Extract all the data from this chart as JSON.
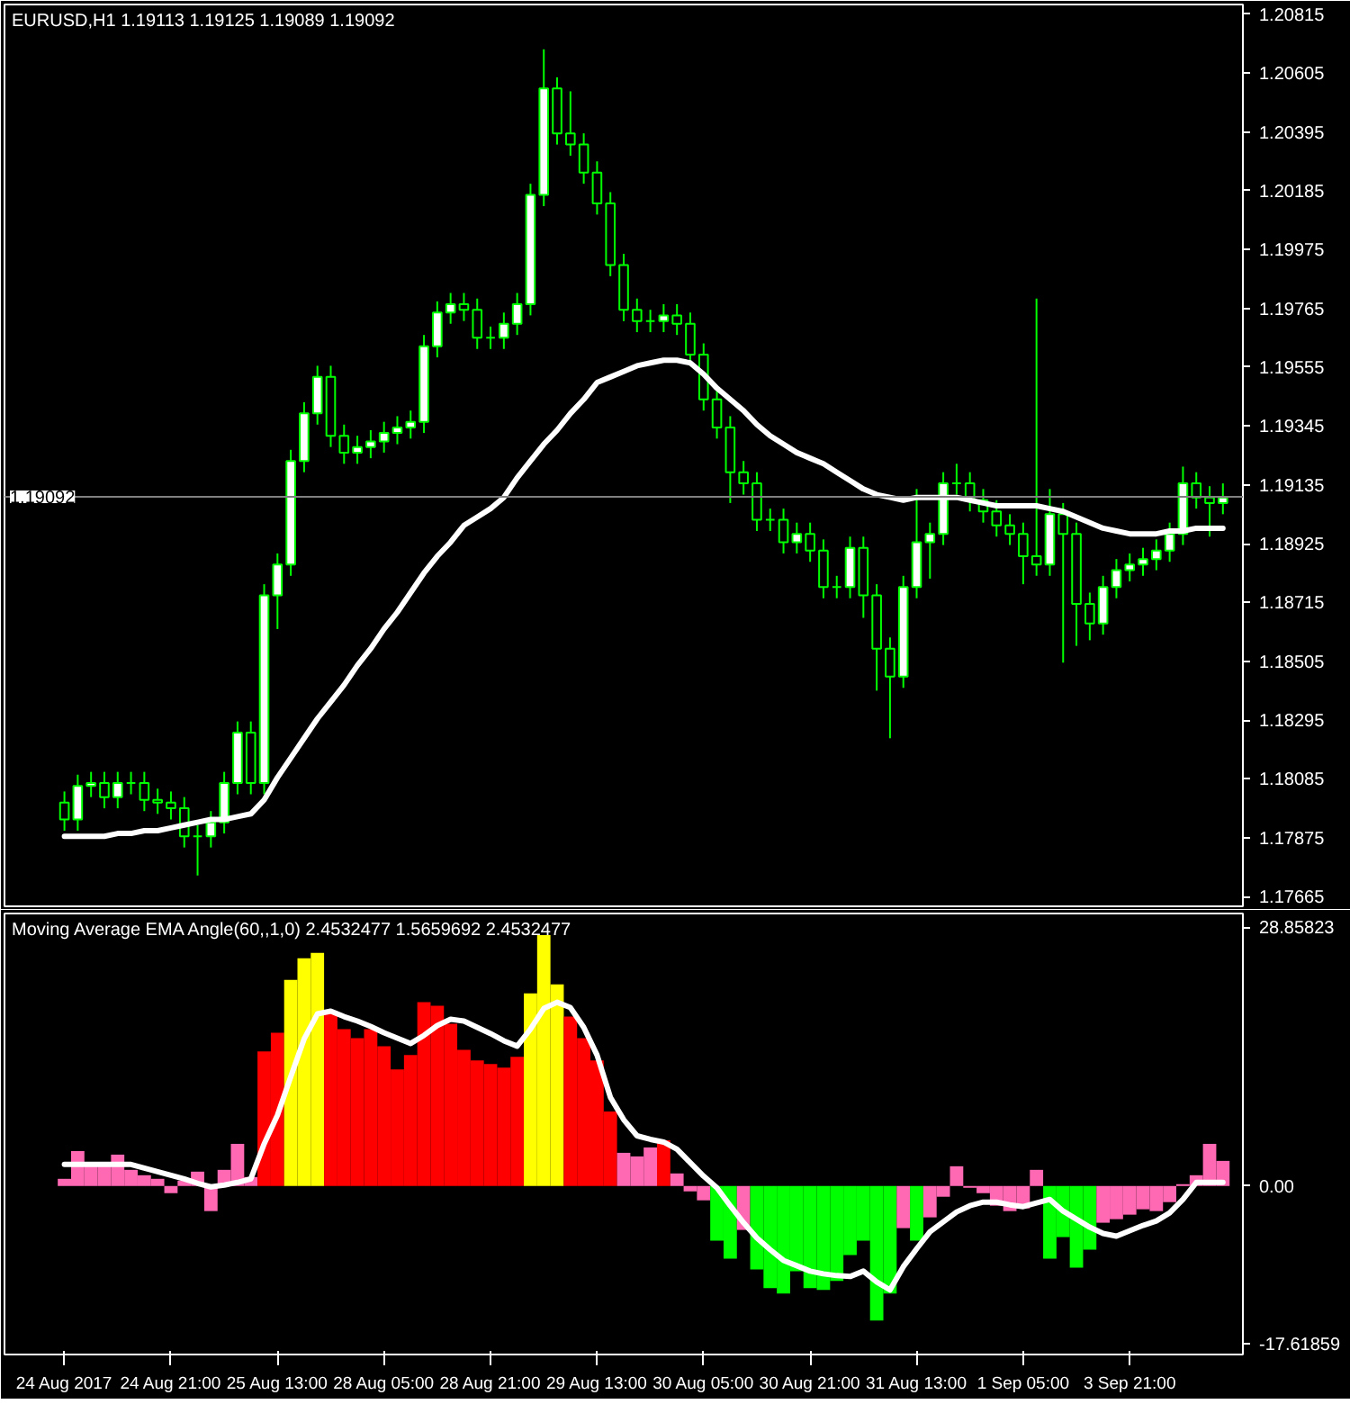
{
  "chart_data": [
    {
      "type": "candlestick",
      "title": "EURUSD,H1  1.19113 1.19125 1.19089 1.19092",
      "color": "#00ff00",
      "grid": false,
      "tick_labels": "y",
      "categories": [
        null,
        null,
        null,
        null,
        null,
        null,
        null,
        null,
        null,
        null,
        null,
        null,
        null,
        null,
        null,
        null,
        null,
        null,
        null,
        null,
        null,
        null,
        null,
        null,
        null,
        null,
        null,
        null,
        null,
        null,
        null,
        null,
        null,
        null,
        null,
        null,
        null,
        null,
        null,
        null,
        null,
        null,
        null,
        null,
        null,
        null,
        null,
        null,
        null,
        null,
        null,
        null,
        null,
        null,
        null,
        null,
        null,
        null,
        null,
        null,
        null,
        null,
        null,
        null,
        null,
        null,
        null,
        null,
        null,
        null,
        null,
        null,
        null,
        null,
        null,
        null,
        null,
        null,
        null,
        null,
        null,
        null,
        null,
        null,
        null,
        null,
        null,
        null
      ],
      "ohlc": [
        [
          1.18,
          1.1804,
          1.179,
          1.1794
        ],
        [
          1.1794,
          1.181,
          1.179,
          1.1806
        ],
        [
          1.1806,
          1.1811,
          1.1802,
          1.1807
        ],
        [
          1.1807,
          1.1811,
          1.1798,
          1.1802
        ],
        [
          1.1802,
          1.1811,
          1.1798,
          1.1807
        ],
        [
          1.1807,
          1.1811,
          1.1803,
          1.1807
        ],
        [
          1.1807,
          1.1811,
          1.1797,
          1.1801
        ],
        [
          1.1801,
          1.1805,
          1.1796,
          1.18
        ],
        [
          1.18,
          1.1804,
          1.1794,
          1.1798
        ],
        [
          1.1798,
          1.1802,
          1.1784,
          1.1788
        ],
        [
          1.1788,
          1.1792,
          1.1774,
          1.1788
        ],
        [
          1.1788,
          1.1797,
          1.1784,
          1.1793
        ],
        [
          1.1793,
          1.1811,
          1.1789,
          1.1807
        ],
        [
          1.1807,
          1.1829,
          1.1803,
          1.1825
        ],
        [
          1.1825,
          1.1829,
          1.1803,
          1.1807
        ],
        [
          1.1807,
          1.1878,
          1.1803,
          1.1874
        ],
        [
          1.1874,
          1.1889,
          1.1862,
          1.1885
        ],
        [
          1.1885,
          1.1926,
          1.1881,
          1.1922
        ],
        [
          1.1922,
          1.1943,
          1.1918,
          1.1939
        ],
        [
          1.1939,
          1.1956,
          1.1935,
          1.1952
        ],
        [
          1.1952,
          1.1956,
          1.1927,
          1.1931
        ],
        [
          1.1931,
          1.1935,
          1.1921,
          1.1925
        ],
        [
          1.1925,
          1.1931,
          1.1921,
          1.1927
        ],
        [
          1.1927,
          1.1933,
          1.1923,
          1.1929
        ],
        [
          1.1929,
          1.1936,
          1.1925,
          1.1932
        ],
        [
          1.1932,
          1.1938,
          1.1928,
          1.1934
        ],
        [
          1.1934,
          1.194,
          1.193,
          1.1936
        ],
        [
          1.1936,
          1.1967,
          1.1932,
          1.1963
        ],
        [
          1.1963,
          1.1979,
          1.1959,
          1.1975
        ],
        [
          1.1975,
          1.1982,
          1.1971,
          1.1978
        ],
        [
          1.1978,
          1.1982,
          1.1972,
          1.1976
        ],
        [
          1.1976,
          1.198,
          1.1962,
          1.1966
        ],
        [
          1.1966,
          1.197,
          1.1962,
          1.1966
        ],
        [
          1.1966,
          1.1975,
          1.1962,
          1.1971
        ],
        [
          1.1971,
          1.1982,
          1.1967,
          1.1978
        ],
        [
          1.1978,
          1.2021,
          1.1974,
          1.2017
        ],
        [
          1.2017,
          1.2069,
          1.2013,
          1.2055
        ],
        [
          1.2055,
          1.2059,
          1.2035,
          1.2039
        ],
        [
          1.2039,
          1.2054,
          1.2031,
          1.2035
        ],
        [
          1.2035,
          1.2039,
          1.2021,
          1.2025
        ],
        [
          1.2025,
          1.2029,
          1.201,
          1.2014
        ],
        [
          1.2014,
          1.2018,
          1.1988,
          1.1992
        ],
        [
          1.1992,
          1.1996,
          1.1972,
          1.1976
        ],
        [
          1.1976,
          1.198,
          1.1968,
          1.1972
        ],
        [
          1.1972,
          1.1976,
          1.1968,
          1.1972
        ],
        [
          1.1972,
          1.1978,
          1.1968,
          1.1974
        ],
        [
          1.1974,
          1.1978,
          1.1967,
          1.1971
        ],
        [
          1.1971,
          1.1975,
          1.1956,
          1.196
        ],
        [
          1.196,
          1.1964,
          1.194,
          1.1944
        ],
        [
          1.1944,
          1.1948,
          1.193,
          1.1934
        ],
        [
          1.1934,
          1.1938,
          1.1907,
          1.1918
        ],
        [
          1.1918,
          1.1922,
          1.191,
          1.1914
        ],
        [
          1.1914,
          1.1918,
          1.1897,
          1.1901
        ],
        [
          1.1901,
          1.1905,
          1.1897,
          1.1901
        ],
        [
          1.1901,
          1.1905,
          1.1889,
          1.1893
        ],
        [
          1.1893,
          1.19,
          1.1889,
          1.1896
        ],
        [
          1.1896,
          1.19,
          1.1886,
          1.189
        ],
        [
          1.189,
          1.1894,
          1.1873,
          1.1877
        ],
        [
          1.1877,
          1.1881,
          1.1873,
          1.1877
        ],
        [
          1.1877,
          1.1895,
          1.1873,
          1.1891
        ],
        [
          1.1891,
          1.1895,
          1.1866,
          1.1874
        ],
        [
          1.1874,
          1.1878,
          1.184,
          1.1855
        ],
        [
          1.1855,
          1.1859,
          1.1823,
          1.1845
        ],
        [
          1.1845,
          1.1881,
          1.1841,
          1.1877
        ],
        [
          1.1877,
          1.1912,
          1.1873,
          1.1893
        ],
        [
          1.1893,
          1.19,
          1.188,
          1.1896
        ],
        [
          1.1896,
          1.1918,
          1.1892,
          1.1914
        ],
        [
          1.1914,
          1.1921,
          1.191,
          1.1914
        ],
        [
          1.1914,
          1.1918,
          1.1904,
          1.1908
        ],
        [
          1.1908,
          1.1912,
          1.19,
          1.1904
        ],
        [
          1.1904,
          1.1908,
          1.1895,
          1.1899
        ],
        [
          1.1899,
          1.1903,
          1.1892,
          1.1896
        ],
        [
          1.1896,
          1.19,
          1.1878,
          1.1888
        ],
        [
          1.1888,
          1.198,
          1.1881,
          1.1885
        ],
        [
          1.1885,
          1.1912,
          1.1881,
          1.1903
        ],
        [
          1.1903,
          1.1907,
          1.185,
          1.1896
        ],
        [
          1.1896,
          1.19,
          1.1856,
          1.1871
        ],
        [
          1.1871,
          1.1875,
          1.1858,
          1.1864
        ],
        [
          1.1864,
          1.1881,
          1.186,
          1.1877
        ],
        [
          1.1877,
          1.1887,
          1.1873,
          1.1883
        ],
        [
          1.1883,
          1.1889,
          1.1879,
          1.1885
        ],
        [
          1.1885,
          1.1891,
          1.1881,
          1.1887
        ],
        [
          1.1887,
          1.1894,
          1.1883,
          1.189
        ],
        [
          1.189,
          1.19,
          1.1886,
          1.1896
        ],
        [
          1.1896,
          1.192,
          1.1892,
          1.1914
        ],
        [
          1.1914,
          1.1918,
          1.1905,
          1.1909
        ],
        [
          1.1909,
          1.1913,
          1.1895,
          1.1907
        ],
        [
          1.1907,
          1.1914,
          1.1903,
          1.1909
        ]
      ],
      "series": [
        {
          "type": "line",
          "color": "#ffffff",
          "values": [
            1.1788,
            1.1788,
            1.1788,
            1.1788,
            1.1789,
            1.1789,
            1.179,
            1.179,
            1.1791,
            1.1792,
            1.1793,
            1.1794,
            1.1794,
            1.1795,
            1.1796,
            1.1801,
            1.1809,
            1.1816,
            1.1823,
            1.183,
            1.1836,
            1.1842,
            1.1849,
            1.1855,
            1.1862,
            1.1868,
            1.1875,
            1.1882,
            1.1888,
            1.1893,
            1.1899,
            1.1902,
            1.1905,
            1.1909,
            1.1916,
            1.1922,
            1.1928,
            1.1933,
            1.1939,
            1.1944,
            1.195,
            1.1952,
            1.1954,
            1.1956,
            1.1957,
            1.1958,
            1.1958,
            1.1957,
            1.1953,
            1.1948,
            1.1944,
            1.194,
            1.1935,
            1.1931,
            1.1928,
            1.1925,
            1.1923,
            1.1921,
            1.1918,
            1.1915,
            1.1912,
            1.191,
            1.1909,
            1.1908,
            1.1909,
            1.1909,
            1.1909,
            1.1909,
            1.1908,
            1.1907,
            1.1906,
            1.1906,
            1.1906,
            1.1906,
            1.1905,
            1.1904,
            1.1902,
            1.19,
            1.1898,
            1.1897,
            1.1896,
            1.1896,
            1.1896,
            1.1897,
            1.1897,
            1.1898,
            1.1898,
            1.1898
          ]
        }
      ],
      "ref_lines": [
        {
          "axis": "y",
          "value": 1.19092,
          "label": "1.19092",
          "color": "#808080"
        }
      ],
      "ylim": [
        1.1763,
        1.2085
      ],
      "yticks": [
        {
          "value": 1.20815,
          "label": "1.20815"
        },
        {
          "value": 1.20605,
          "label": "1.20605"
        },
        {
          "value": 1.20395,
          "label": "1.20395"
        },
        {
          "value": 1.20185,
          "label": "1.20185"
        },
        {
          "value": 1.19975,
          "label": "1.19975"
        },
        {
          "value": 1.19765,
          "label": "1.19765"
        },
        {
          "value": 1.19555,
          "label": "1.19555"
        },
        {
          "value": 1.19345,
          "label": "1.19345"
        },
        {
          "value": 1.19135,
          "label": "1.19135"
        },
        {
          "value": 1.18925,
          "label": "1.18925"
        },
        {
          "value": 1.18715,
          "label": "1.18715"
        },
        {
          "value": 1.18505,
          "label": "1.18505"
        },
        {
          "value": 1.18295,
          "label": "1.18295"
        },
        {
          "value": 1.18085,
          "label": "1.18085"
        },
        {
          "value": 1.17875,
          "label": "1.17875"
        },
        {
          "value": 1.17665,
          "label": "1.17665"
        }
      ]
    },
    {
      "type": "bar",
      "title": "Moving Average EMA Angle(60,,1,0) 2.4532477 1.5659692 2.4532477",
      "grid": false,
      "categories": [
        "24 Aug 2017",
        null,
        null,
        null,
        null,
        null,
        null,
        null,
        "24 Aug 21:00",
        null,
        null,
        null,
        null,
        null,
        null,
        null,
        "25 Aug 13:00",
        null,
        null,
        null,
        null,
        null,
        null,
        null,
        "28 Aug 05:00",
        null,
        null,
        null,
        null,
        null,
        null,
        null,
        "28 Aug 21:00",
        null,
        null,
        null,
        null,
        null,
        null,
        null,
        "29 Aug 13:00",
        null,
        null,
        null,
        null,
        null,
        null,
        null,
        "30 Aug 05:00",
        null,
        null,
        null,
        null,
        null,
        null,
        null,
        "30 Aug 21:00",
        null,
        null,
        null,
        null,
        null,
        null,
        null,
        "31 Aug 13:00",
        null,
        null,
        null,
        null,
        null,
        null,
        null,
        "1 Sep 05:00",
        null,
        null,
        null,
        null,
        null,
        null,
        null,
        "3 Sep 21:00",
        null,
        null,
        null,
        null,
        null,
        null,
        null
      ],
      "series": [
        {
          "type": "bar",
          "values": [
            0.8,
            3.9,
            2.6,
            2.6,
            3.5,
            1.8,
            1.2,
            0.8,
            -0.8,
            0.6,
            1.6,
            -2.8,
            1.8,
            4.7,
            1.0,
            15.0,
            17.1,
            23.0,
            25.4,
            26.0,
            19.5,
            17.5,
            16.5,
            17.5,
            15.6,
            13.0,
            14.6,
            20.5,
            20.1,
            18.1,
            15.2,
            14.0,
            13.6,
            13.2,
            14.4,
            21.5,
            28.0,
            22.5,
            18.9,
            16.5,
            14.0,
            8.3,
            3.7,
            3.3,
            4.3,
            5.1,
            1.4,
            -0.6,
            -1.6,
            -6.1,
            -8.1,
            -4.9,
            -9.3,
            -11.4,
            -12.0,
            -9.5,
            -11.4,
            -11.6,
            -10.6,
            -7.7,
            -6.1,
            -15.0,
            -12.0,
            -4.7,
            -6.1,
            -3.5,
            -1.2,
            2.2,
            -0.2,
            -0.8,
            -2.2,
            -2.8,
            -2.5,
            1.8,
            -8.1,
            -5.7,
            -9.1,
            -7.1,
            -4.1,
            -3.7,
            -3.2,
            -2.6,
            -2.8,
            -1.8,
            0.2,
            1.2,
            4.7,
            2.8
          ],
          "colors": [
            "#ff69b4",
            "#ff69b4",
            "#ff69b4",
            "#ff69b4",
            "#ff69b4",
            "#ff69b4",
            "#ff69b4",
            "#ff69b4",
            "#ff69b4",
            "#ff69b4",
            "#ff69b4",
            "#ff69b4",
            "#ff69b4",
            "#ff69b4",
            "#ff69b4",
            "#ff0000",
            "#ff0000",
            "#ffff00",
            "#ffff00",
            "#ffff00",
            "#ff0000",
            "#ff0000",
            "#ff0000",
            "#ff0000",
            "#ff0000",
            "#ff0000",
            "#ff0000",
            "#ff0000",
            "#ff0000",
            "#ff0000",
            "#ff0000",
            "#ff0000",
            "#ff0000",
            "#ff0000",
            "#ff0000",
            "#ffff00",
            "#ffff00",
            "#ffff00",
            "#ff0000",
            "#ff0000",
            "#ff0000",
            "#ff0000",
            "#ff69b4",
            "#ff69b4",
            "#ff69b4",
            "#ff0000",
            "#ff69b4",
            "#ff69b4",
            "#ff69b4",
            "#00ff00",
            "#00ff00",
            "#ff69b4",
            "#00ff00",
            "#00ff00",
            "#00ff00",
            "#00ff00",
            "#00ff00",
            "#00ff00",
            "#00ff00",
            "#00ff00",
            "#00ff00",
            "#00ff00",
            "#00ff00",
            "#ff69b4",
            "#00ff00",
            "#ff69b4",
            "#ff69b4",
            "#ff69b4",
            "#ff69b4",
            "#ff69b4",
            "#ff69b4",
            "#ff69b4",
            "#ff69b4",
            "#ff69b4",
            "#00ff00",
            "#00ff00",
            "#00ff00",
            "#00ff00",
            "#ff69b4",
            "#ff69b4",
            "#ff69b4",
            "#ff69b4",
            "#ff69b4",
            "#ff69b4",
            "#ff69b4",
            "#ff69b4",
            "#ff69b4",
            "#ff69b4"
          ]
        },
        {
          "type": "line",
          "color": "#ffffff",
          "values": [
            2.4,
            2.4,
            2.4,
            2.4,
            2.4,
            2.4,
            2.0,
            1.6,
            1.2,
            0.8,
            0.3,
            -0.1,
            0.1,
            0.4,
            0.8,
            4.7,
            7.9,
            12.2,
            16.4,
            19.2,
            19.5,
            18.9,
            18.4,
            17.8,
            17.1,
            16.5,
            15.9,
            16.8,
            17.9,
            18.6,
            18.4,
            17.7,
            17.0,
            16.2,
            15.6,
            17.5,
            19.8,
            20.5,
            19.9,
            17.7,
            14.6,
            9.9,
            7.4,
            5.6,
            5.2,
            4.9,
            4.1,
            2.6,
            1.1,
            -0.2,
            -2.2,
            -4.1,
            -5.8,
            -7.1,
            -8.3,
            -8.9,
            -9.5,
            -9.8,
            -10.0,
            -10.1,
            -9.5,
            -10.7,
            -11.6,
            -9.0,
            -7.0,
            -5.1,
            -4.0,
            -2.9,
            -2.2,
            -1.8,
            -1.8,
            -2.1,
            -2.3,
            -1.9,
            -1.5,
            -2.8,
            -3.7,
            -4.6,
            -5.3,
            -5.6,
            -5.0,
            -4.4,
            -3.9,
            -3.0,
            -1.5,
            0.4,
            0.4,
            0.4
          ]
        }
      ],
      "ylim": [
        -18.8,
        30.4
      ],
      "yticks": [
        {
          "value": 28.85823,
          "label": "28.85823"
        },
        {
          "value": 0,
          "label": "0.00"
        },
        {
          "value": -17.61859,
          "label": "-17.61859"
        }
      ]
    }
  ]
}
